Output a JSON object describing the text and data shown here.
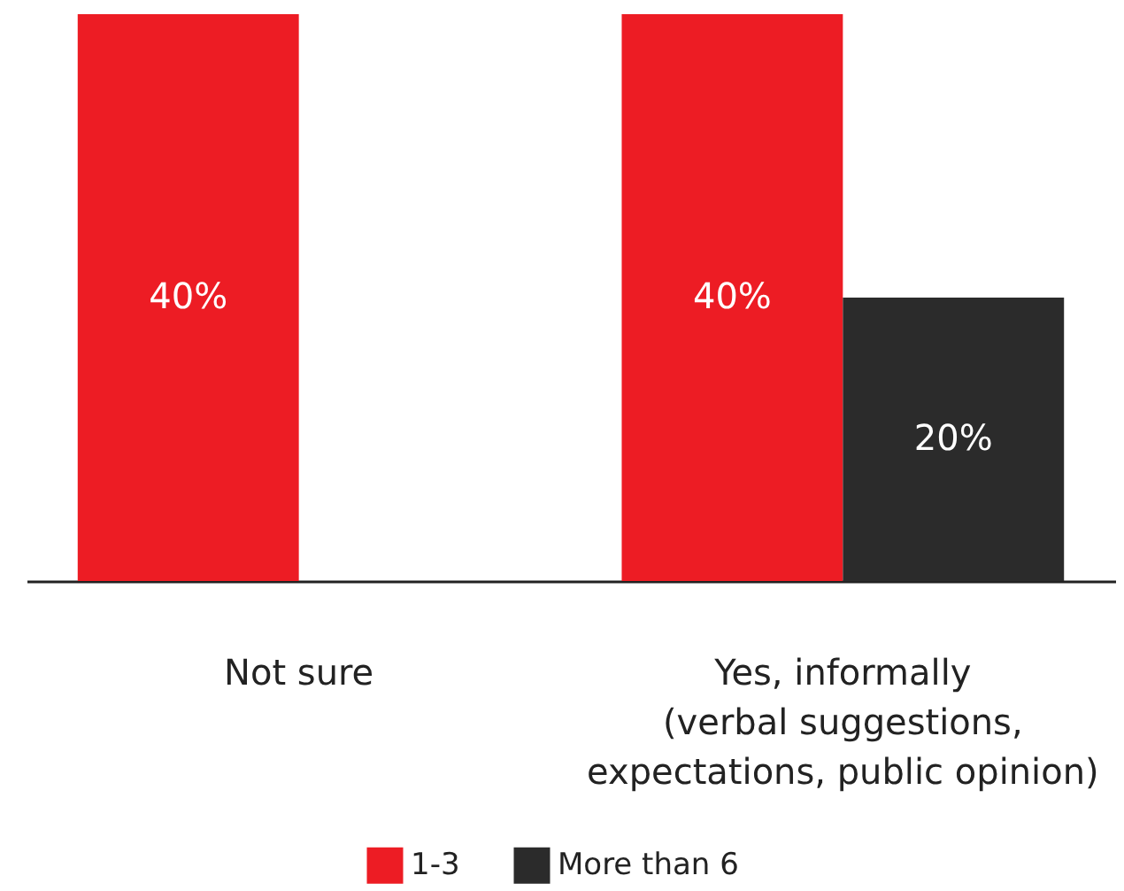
{
  "chart_data": {
    "type": "bar",
    "categories": [
      "Not sure",
      "Yes, informally\n(verbal suggestions,\nexpectations, public opinion)"
    ],
    "series": [
      {
        "name": "1-3",
        "color": "#ed1c24",
        "values": [
          40,
          40
        ],
        "value_labels": [
          "40%",
          "40%"
        ]
      },
      {
        "name": "More than 6",
        "color": "#2b2b2b",
        "values": [
          null,
          20
        ],
        "value_labels": [
          null,
          "20%"
        ]
      }
    ],
    "legend": "bottom"
  }
}
